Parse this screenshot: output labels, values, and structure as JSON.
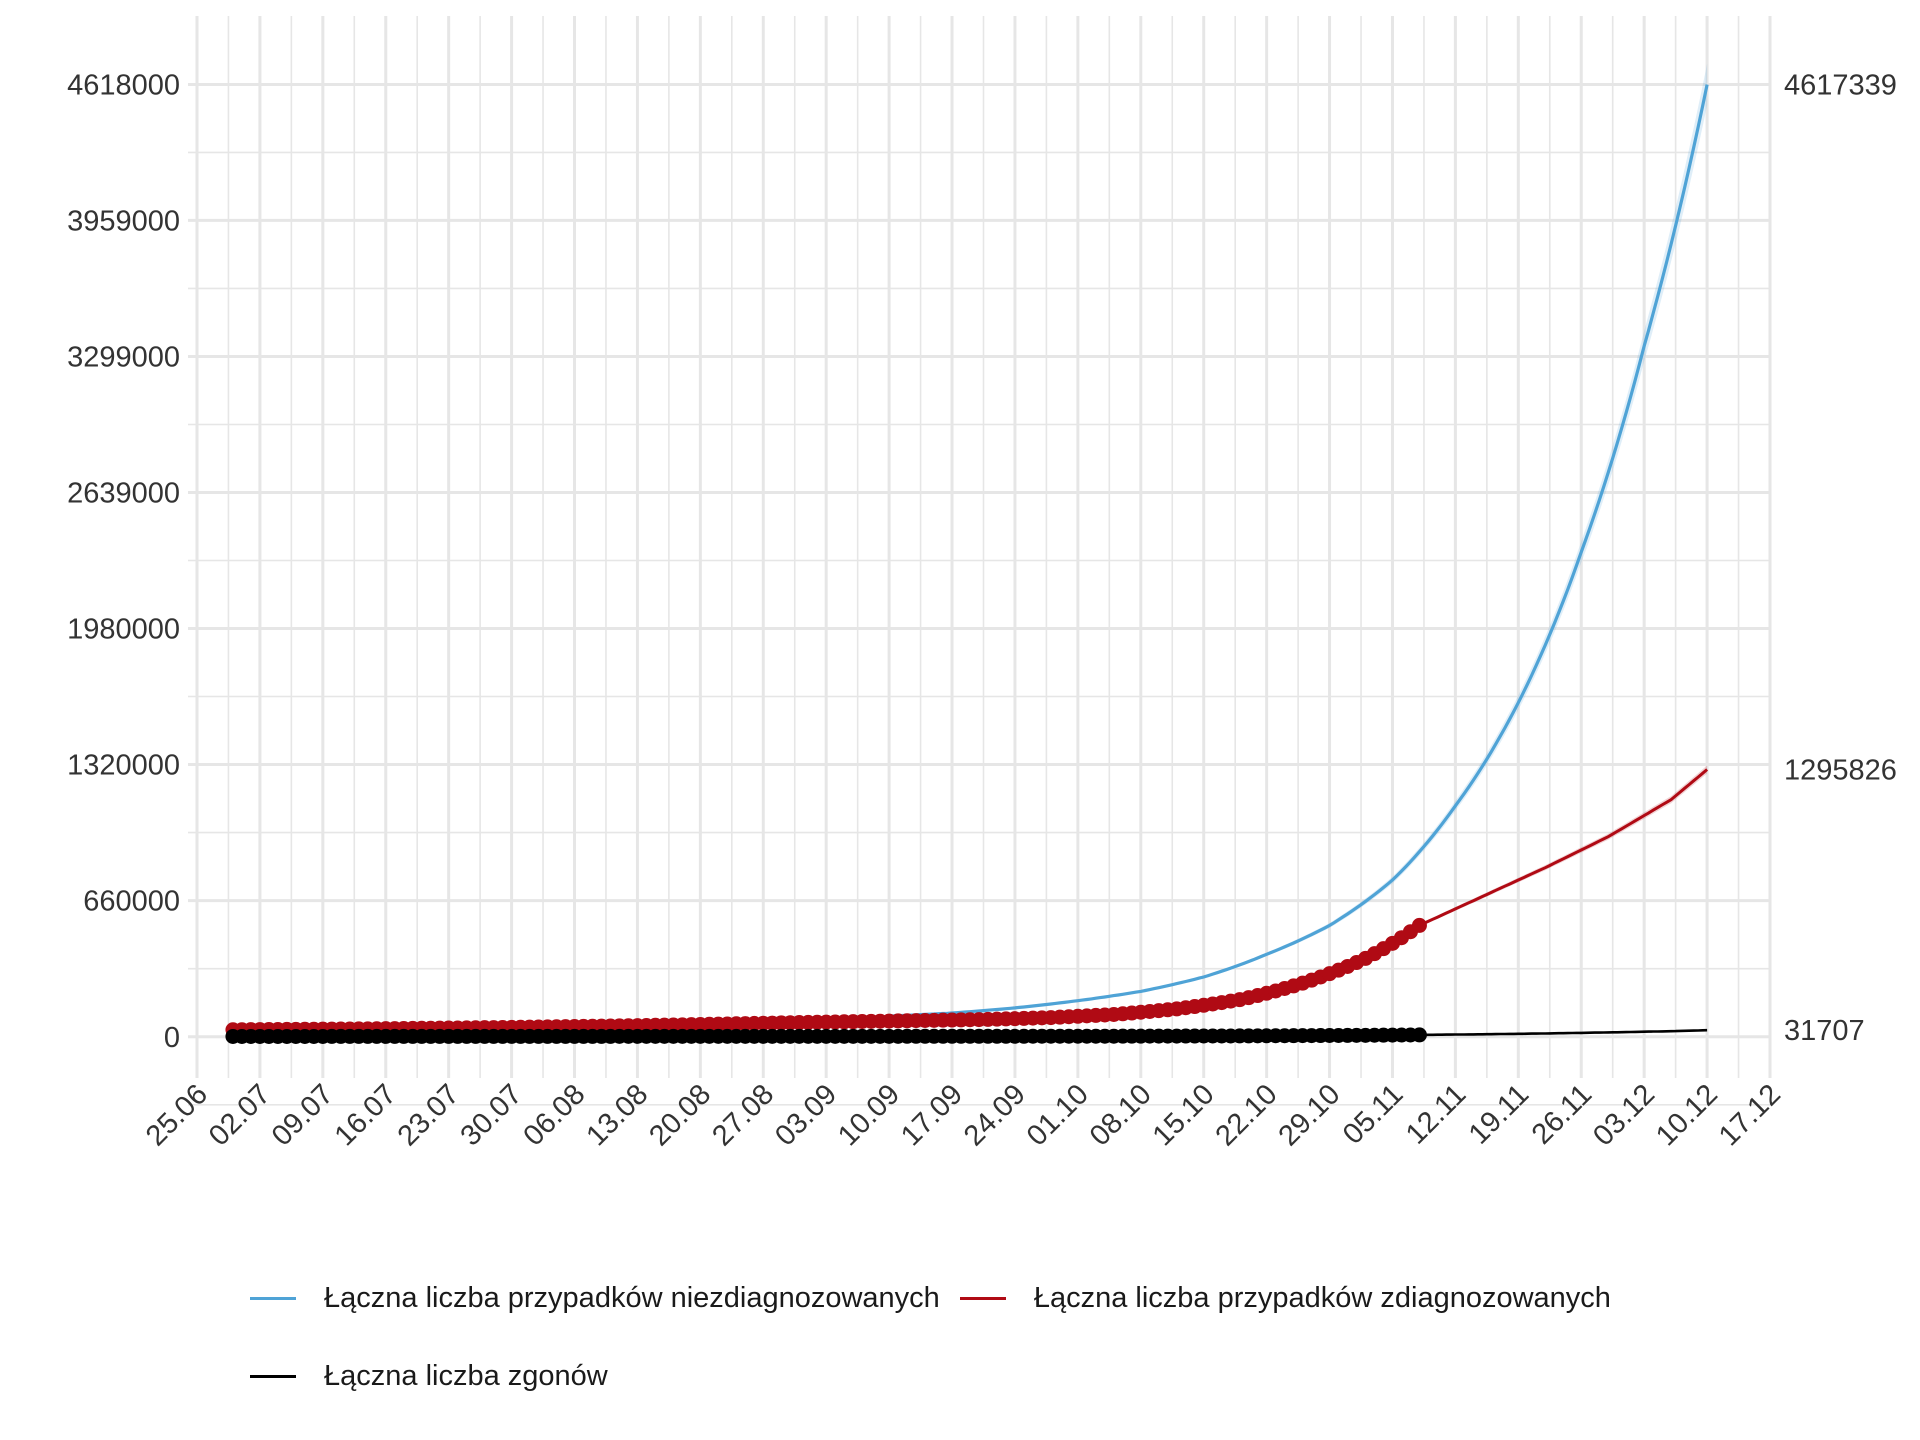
{
  "colors": {
    "undiagnosed": "#4FA3D6",
    "diagnosed": "#B00A14",
    "deaths": "#000000",
    "grid": "#E6E6E6"
  },
  "chart_data": {
    "type": "line",
    "title": "",
    "xlabel": "",
    "ylabel": "",
    "x_axis": {
      "type": "date",
      "year": 2020,
      "range": [
        "2020-06-24",
        "2020-12-17"
      ],
      "tick_labels": [
        "25.06",
        "02.07",
        "09.07",
        "16.07",
        "23.07",
        "30.07",
        "06.08",
        "13.08",
        "20.08",
        "27.08",
        "03.09",
        "10.09",
        "17.09",
        "24.09",
        "01.10",
        "08.10",
        "15.10",
        "22.10",
        "29.10",
        "05.11",
        "12.11",
        "19.11",
        "26.11",
        "03.12",
        "10.12",
        "17.12"
      ],
      "tick_dates": [
        "2020-06-25",
        "2020-07-02",
        "2020-07-09",
        "2020-07-16",
        "2020-07-23",
        "2020-07-30",
        "2020-08-06",
        "2020-08-13",
        "2020-08-20",
        "2020-08-27",
        "2020-09-03",
        "2020-09-10",
        "2020-09-17",
        "2020-09-24",
        "2020-10-01",
        "2020-10-08",
        "2020-10-15",
        "2020-10-22",
        "2020-10-29",
        "2020-11-05",
        "2020-11-12",
        "2020-11-19",
        "2020-11-26",
        "2020-12-03",
        "2020-12-10",
        "2020-12-17"
      ]
    },
    "y_axis": {
      "range": [
        -200000,
        4950000
      ],
      "tick_values": [
        0,
        660000,
        1320000,
        1980000,
        2639000,
        3299000,
        3959000,
        4618000
      ],
      "tick_labels": [
        "0",
        "660000",
        "1320000",
        "1980000",
        "2639000",
        "3299000",
        "3959000",
        "4618000"
      ],
      "secondary_labels": [
        "4617339",
        "1295826",
        "31707"
      ]
    },
    "grid": true,
    "legend_position": "bottom",
    "series": [
      {
        "name": "Łączna liczba przypadków niezdiagnozowanych",
        "style": "line",
        "color": "#4FA3D6",
        "ribbon": true,
        "x": [
          "2020-09-10",
          "2020-09-17",
          "2020-09-24",
          "2020-10-01",
          "2020-10-08",
          "2020-10-15",
          "2020-10-22",
          "2020-10-29",
          "2020-11-05",
          "2020-11-12",
          "2020-11-19",
          "2020-11-26",
          "2020-12-03",
          "2020-12-10"
        ],
        "y": [
          100000,
          115000,
          140000,
          175000,
          220000,
          290000,
          400000,
          540000,
          760000,
          1120000,
          1620000,
          2350000,
          3350000,
          4617339
        ]
      },
      {
        "name": "Łączna liczba przypadków zdiagnozowanych",
        "style": "points",
        "color": "#B00A14",
        "observed_x": [
          "2020-06-29",
          "2020-07-06",
          "2020-07-13",
          "2020-07-20",
          "2020-07-27",
          "2020-08-03",
          "2020-08-10",
          "2020-08-17",
          "2020-08-24",
          "2020-08-31",
          "2020-09-07",
          "2020-09-14",
          "2020-09-21",
          "2020-09-28",
          "2020-10-05",
          "2020-10-12",
          "2020-10-19",
          "2020-10-26",
          "2020-11-02",
          "2020-11-08"
        ],
        "observed_y": [
          34000,
          36000,
          38000,
          41000,
          44000,
          48000,
          52000,
          57000,
          63000,
          69000,
          74000,
          79000,
          84000,
          93000,
          108000,
          135000,
          180000,
          260000,
          380000,
          540000
        ],
        "forecast_x": [
          "2020-11-08",
          "2020-11-15",
          "2020-11-22",
          "2020-11-29",
          "2020-12-06",
          "2020-12-10"
        ],
        "forecast_y": [
          540000,
          680000,
          820000,
          970000,
          1150000,
          1295826
        ],
        "ribbon": true
      },
      {
        "name": "Łączna liczba zgonów",
        "style": "points",
        "color": "#000000",
        "observed_x": [
          "2020-06-29",
          "2020-07-13",
          "2020-07-27",
          "2020-08-10",
          "2020-08-24",
          "2020-09-07",
          "2020-09-21",
          "2020-10-05",
          "2020-10-19",
          "2020-11-02",
          "2020-11-08"
        ],
        "observed_y": [
          1400,
          1600,
          1700,
          1800,
          1950,
          2100,
          2300,
          2700,
          4000,
          7000,
          9000
        ],
        "forecast_x": [
          "2020-11-08",
          "2020-11-15",
          "2020-11-22",
          "2020-11-29",
          "2020-12-06",
          "2020-12-10"
        ],
        "forecast_y": [
          9000,
          12000,
          16000,
          21000,
          27000,
          31707
        ]
      }
    ]
  },
  "legend": {
    "items": [
      {
        "label": "Łączna liczba przypadków niezdiagnozowanych",
        "color": "#4FA3D6"
      },
      {
        "label": "Łączna liczba przypadków zdiagnozowanych",
        "color": "#B00A14"
      },
      {
        "label": "Łączna liczba zgonów",
        "color": "#000000"
      }
    ]
  }
}
